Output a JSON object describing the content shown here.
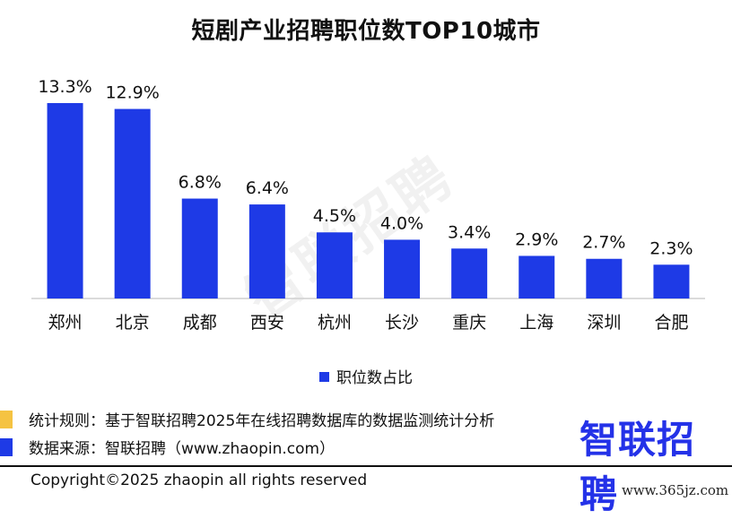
{
  "chart_data": {
    "type": "bar",
    "title": "短剧产业招聘职位数TOP10城市",
    "categories": [
      "郑州",
      "北京",
      "成都",
      "西安",
      "杭州",
      "长沙",
      "重庆",
      "上海",
      "深圳",
      "合肥"
    ],
    "series": [
      {
        "name": "职位数占比",
        "values": [
          13.3,
          12.9,
          6.8,
          6.4,
          4.5,
          4.0,
          3.4,
          2.9,
          2.7,
          2.3
        ],
        "labels": [
          "13.3%",
          "12.9%",
          "6.8%",
          "6.4%",
          "4.5%",
          "4.0%",
          "3.4%",
          "2.9%",
          "2.7%",
          "2.3%"
        ]
      }
    ],
    "ylim": [
      0,
      13.3
    ],
    "grid": false,
    "legend_position": "bottom-center",
    "bar_color": "#1e3ae6"
  },
  "watermark": "智联招聘",
  "notes": [
    {
      "text": "统计规则：基于智联招聘2025年在线招聘数据库的数据监测统计分析",
      "color": "#f5c342"
    },
    {
      "text": "数据来源：智联招聘（www.zhaopin.com）",
      "color": "#1e3ae6"
    }
  ],
  "logo": "智联招聘",
  "copyright": "Copyright©2025 zhaopin all rights reserved",
  "site_url": "www.365jz.com"
}
